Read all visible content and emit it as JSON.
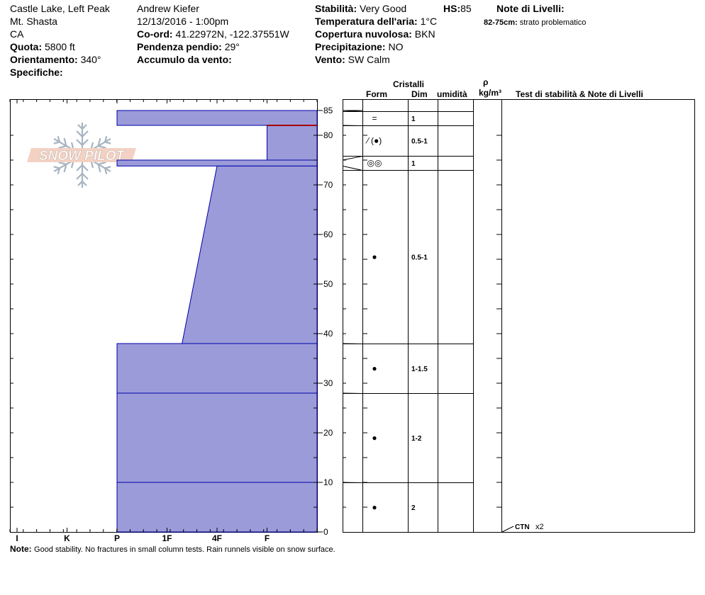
{
  "header": {
    "location": "Castle Lake, Left Peak",
    "range": "Mt. Shasta",
    "state": "CA",
    "elevation_label": "Quota:",
    "elevation_value": "5800 ft",
    "aspect_label": "Orientamento:",
    "aspect_value": "340°",
    "specifics_label": "Specifiche:",
    "observer": "Andrew Kiefer",
    "datetime": "12/13/2016 - 1:00pm",
    "coord_label": "Co-ord:",
    "coord_value": "41.22972N, -122.37551W",
    "slope_label": "Pendenza pendio:",
    "slope_value": "29°",
    "wind_loading_label": "Accumulo da vento:",
    "wind_loading_value": "",
    "stability_label": "Stabilità:",
    "stability_value": "Very Good",
    "hs_label": "HS:",
    "hs_value": "85",
    "air_temp_label": "Temperatura dell'aria:",
    "air_temp_value": "1°C",
    "cloud_label": "Copertura nuvolosa:",
    "cloud_value": "BKN",
    "precip_label": "Precipitazione:",
    "precip_value": "NO",
    "wind_label": "Vento:",
    "wind_value": "SW  Calm",
    "layer_notes_title": "Note di Livelli:",
    "layer_note_range": "82-75cm:",
    "layer_note_text": "strato problematico"
  },
  "logo": {
    "text": "SNOW PILOT"
  },
  "columns": {
    "crystals": "Cristalli",
    "form": "Form",
    "dim": "Dim",
    "moisture": "umidità",
    "rho": "ρ",
    "density_unit": "kg/m³",
    "tests": "Test di stabilità & Note di Livelli"
  },
  "note": {
    "label": "Note:",
    "text": "Good stability.  No fractures in small column tests.  Rain runnels visible on snow surface."
  },
  "test_result": {
    "label": "CTN",
    "count": "x2"
  },
  "colors": {
    "layer_fill": "#9b9bd9",
    "layer_line": "#0000aa",
    "problem_line": "#aa0000"
  },
  "chart_data": {
    "type": "snow_profile",
    "ylim": [
      0,
      85
    ],
    "y_ticks": [
      0,
      10,
      20,
      30,
      40,
      50,
      60,
      70,
      80,
      85
    ],
    "x_categories": [
      "I",
      "K",
      "P",
      "1F",
      "4F",
      "F"
    ],
    "hardness_scale": "right-to-left; F=1, 4F=2, 1F=3, P=4, K=5, I=6",
    "layers": [
      {
        "top": 85,
        "bottom": 82,
        "hardness_top": 4,
        "hardness_bottom": 4,
        "form": "=",
        "dim": "1"
      },
      {
        "top": 82,
        "bottom": 75,
        "hardness_top": 1,
        "hardness_bottom": 1,
        "form": "⁄ (●)",
        "dim": "0.5-1"
      },
      {
        "top": 75,
        "bottom": 73.8,
        "hardness_top": 4,
        "hardness_bottom": 4,
        "form": "◎◎",
        "dim": "1"
      },
      {
        "top": 73.8,
        "bottom": 38,
        "hardness_top": 2,
        "hardness_bottom": 2.7,
        "form": "●",
        "dim": "0.5-1"
      },
      {
        "top": 38,
        "bottom": 28,
        "hardness_top": 4,
        "hardness_bottom": 4,
        "form": "●",
        "dim": "1-1.5"
      },
      {
        "top": 28,
        "bottom": 10,
        "hardness_top": 4,
        "hardness_bottom": 4,
        "form": "●",
        "dim": "1-2"
      },
      {
        "top": 10,
        "bottom": 0,
        "hardness_top": 4,
        "hardness_bottom": 4,
        "form": "●",
        "dim": "2"
      }
    ],
    "problem_layer_top": 82,
    "test_depth": 0
  }
}
